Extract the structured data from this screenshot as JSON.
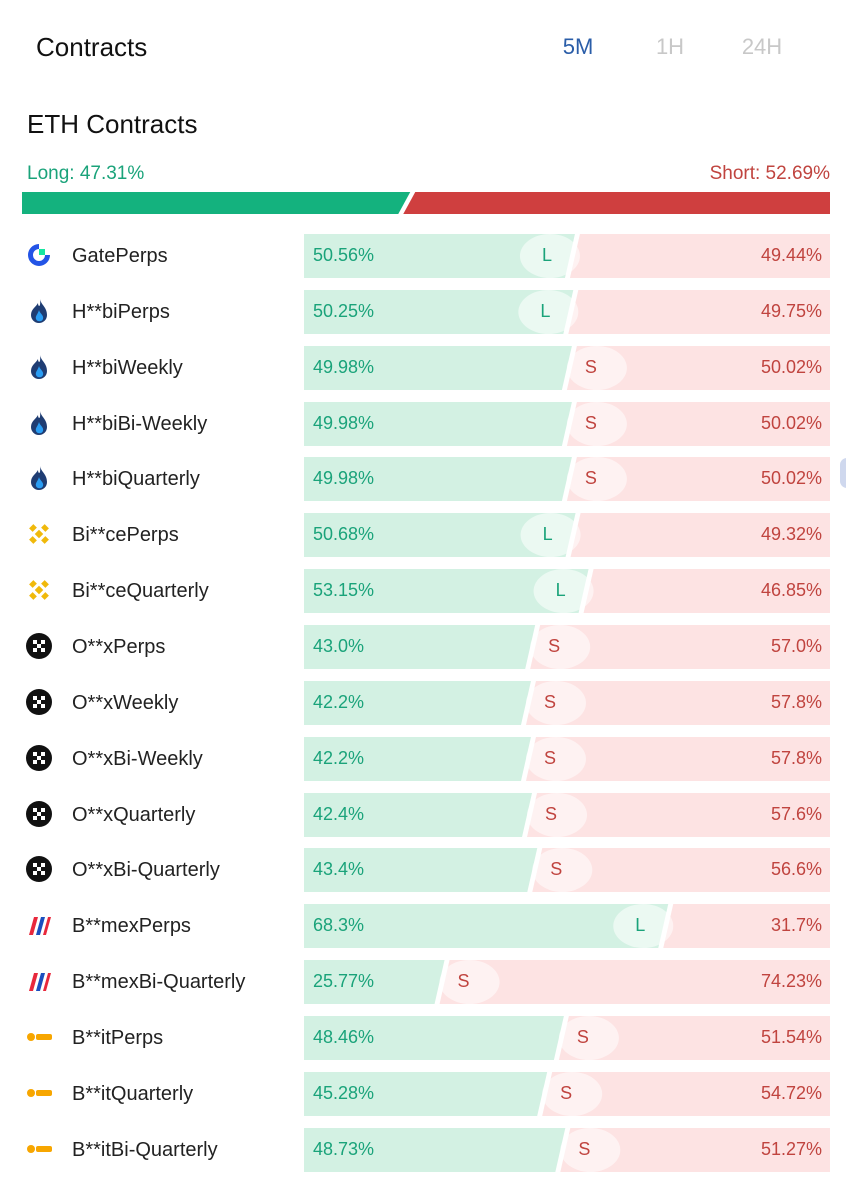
{
  "header": {
    "title": "Contracts",
    "tabs": [
      {
        "label": "5M",
        "active": true
      },
      {
        "label": "1H",
        "active": false
      },
      {
        "label": "24H",
        "active": false
      }
    ]
  },
  "section": {
    "title": "ETH Contracts",
    "long_label": "Long: 47.31%",
    "short_label": "Short: 52.69%",
    "long_fraction": 0.4731
  },
  "colors": {
    "long": "#14b27e",
    "short": "#cf3f3f",
    "long_soft": "#d3f1e3",
    "short_soft": "#fde3e3",
    "long_text": "#1aa37a",
    "short_text": "#c0443f"
  },
  "exchanges": [
    {
      "name": "GatePerps",
      "icon": "gate-icon",
      "long": "50.56%",
      "short": "49.44%",
      "bias": "L",
      "long_value": 50.56
    },
    {
      "name": "H**biPerps",
      "icon": "huobi-flame-icon",
      "long": "50.25%",
      "short": "49.75%",
      "bias": "L",
      "long_value": 50.25
    },
    {
      "name": "H**biWeekly",
      "icon": "huobi-flame-icon",
      "long": "49.98%",
      "short": "50.02%",
      "bias": "S",
      "long_value": 49.98
    },
    {
      "name": "H**biBi-Weekly",
      "icon": "huobi-flame-icon",
      "long": "49.98%",
      "short": "50.02%",
      "bias": "S",
      "long_value": 49.98
    },
    {
      "name": "H**biQuarterly",
      "icon": "huobi-flame-icon",
      "long": "49.98%",
      "short": "50.02%",
      "bias": "S",
      "long_value": 49.98
    },
    {
      "name": "Bi**cePerps",
      "icon": "binance-icon",
      "long": "50.68%",
      "short": "49.32%",
      "bias": "L",
      "long_value": 50.68
    },
    {
      "name": "Bi**ceQuarterly",
      "icon": "binance-icon",
      "long": "53.15%",
      "short": "46.85%",
      "bias": "L",
      "long_value": 53.15
    },
    {
      "name": "O**xPerps",
      "icon": "okx-icon",
      "long": "43.0%",
      "short": "57.0%",
      "bias": "S",
      "long_value": 43.0
    },
    {
      "name": "O**xWeekly",
      "icon": "okx-icon",
      "long": "42.2%",
      "short": "57.8%",
      "bias": "S",
      "long_value": 42.2
    },
    {
      "name": "O**xBi-Weekly",
      "icon": "okx-icon",
      "long": "42.2%",
      "short": "57.8%",
      "bias": "S",
      "long_value": 42.2
    },
    {
      "name": "O**xQuarterly",
      "icon": "okx-icon",
      "long": "42.4%",
      "short": "57.6%",
      "bias": "S",
      "long_value": 42.4
    },
    {
      "name": "O**xBi-Quarterly",
      "icon": "okx-icon",
      "long": "43.4%",
      "short": "56.6%",
      "bias": "S",
      "long_value": 43.4
    },
    {
      "name": "B**mexPerps",
      "icon": "bitmex-icon",
      "long": "68.3%",
      "short": "31.7%",
      "bias": "L",
      "long_value": 68.3
    },
    {
      "name": "B**mexBi-Quarterly",
      "icon": "bitmex-icon",
      "long": "25.77%",
      "short": "74.23%",
      "bias": "S",
      "long_value": 25.77
    },
    {
      "name": "B**itPerps",
      "icon": "bybit-icon",
      "long": "48.46%",
      "short": "51.54%",
      "bias": "S",
      "long_value": 48.46
    },
    {
      "name": "B**itQuarterly",
      "icon": "bybit-icon",
      "long": "45.28%",
      "short": "54.72%",
      "bias": "S",
      "long_value": 45.28
    },
    {
      "name": "B**itBi-Quarterly",
      "icon": "bybit-icon",
      "long": "48.73%",
      "short": "51.27%",
      "bias": "S",
      "long_value": 48.73
    }
  ]
}
